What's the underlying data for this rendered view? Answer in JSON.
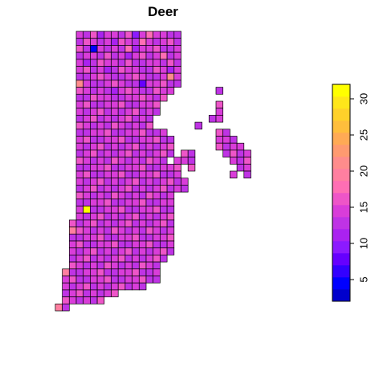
{
  "chart_data": {
    "type": "heatmap",
    "title": "Deer",
    "xlabel": "",
    "ylabel": "",
    "colorbar": {
      "range": [
        2,
        32
      ],
      "ticks": [
        5,
        10,
        15,
        20,
        25,
        30
      ],
      "colors": [
        "#0000CC",
        "#0000FF",
        "#3300FF",
        "#6600FF",
        "#8C1AFF",
        "#AA22F0",
        "#BF33E5",
        "#D93DD9",
        "#EE55C8",
        "#FF6EB4",
        "#FF7FA0",
        "#FF8C8C",
        "#FF9A70",
        "#FFAA55",
        "#FFBE3C",
        "#FFD12A",
        "#FFE61A",
        "#FFFF00"
      ]
    },
    "grid": {
      "rows": [
        {
          "r": 0,
          "c0": 0,
          "n": 15,
          "vals": [
            15,
            12,
            16,
            11,
            14,
            15,
            13,
            16,
            9,
            14,
            17,
            15,
            14,
            13,
            12
          ]
        },
        {
          "r": 1,
          "c0": 0,
          "n": 15,
          "vals": [
            13,
            16,
            14,
            12,
            15,
            11,
            16,
            14,
            13,
            17,
            15,
            12,
            14,
            16,
            13
          ]
        },
        {
          "r": 2,
          "c0": 0,
          "n": 15,
          "vals": [
            16,
            13,
            5,
            15,
            12,
            14,
            13,
            17,
            11,
            15,
            14,
            16,
            12,
            13,
            15
          ]
        },
        {
          "r": 3,
          "c0": 0,
          "n": 15,
          "vals": [
            12,
            14,
            15,
            13,
            16,
            12,
            15,
            11,
            14,
            16,
            13,
            15,
            17,
            12,
            14
          ]
        },
        {
          "r": 4,
          "c0": 0,
          "n": 15,
          "vals": [
            14,
            11,
            13,
            16,
            14,
            15,
            12,
            16,
            13,
            12,
            15,
            14,
            13,
            16,
            12
          ]
        },
        {
          "r": 5,
          "c0": 0,
          "n": 15,
          "vals": [
            15,
            16,
            12,
            14,
            11,
            13,
            16,
            14,
            15,
            13,
            12,
            16,
            14,
            11,
            15
          ]
        },
        {
          "r": 6,
          "c0": 0,
          "n": 15,
          "vals": [
            13,
            12,
            15,
            16,
            14,
            12,
            13,
            15,
            16,
            14,
            13,
            12,
            15,
            21,
            14
          ]
        },
        {
          "r": 7,
          "c0": 0,
          "n": 15,
          "vals": [
            21,
            14,
            13,
            12,
            15,
            16,
            14,
            12,
            13,
            7,
            15,
            14,
            16,
            12,
            13
          ]
        },
        {
          "r": 8,
          "c0": 0,
          "n": 14,
          "vals": [
            16,
            15,
            12,
            14,
            13,
            11,
            15,
            16,
            14,
            12,
            13,
            16,
            15,
            14
          ]
        },
        {
          "r": 9,
          "c0": 0,
          "n": 13,
          "vals": [
            12,
            13,
            16,
            15,
            14,
            13,
            12,
            14,
            15,
            16,
            14,
            13,
            16
          ]
        },
        {
          "r": 10,
          "c0": 0,
          "n": 12,
          "vals": [
            14,
            16,
            13,
            12,
            15,
            14,
            16,
            13,
            12,
            15,
            14,
            16
          ]
        },
        {
          "r": 11,
          "c0": 0,
          "n": 12,
          "vals": [
            15,
            12,
            14,
            16,
            13,
            15,
            12,
            14,
            16,
            13,
            15,
            12
          ]
        },
        {
          "r": 12,
          "c0": 0,
          "n": 11,
          "vals": [
            13,
            15,
            16,
            12,
            14,
            13,
            15,
            16,
            12,
            14,
            13
          ]
        },
        {
          "r": 13,
          "c0": 0,
          "n": 11,
          "vals": [
            16,
            14,
            12,
            15,
            13,
            16,
            14,
            12,
            15,
            13,
            16
          ]
        },
        {
          "r": 14,
          "c0": 0,
          "n": 13,
          "vals": [
            12,
            13,
            15,
            14,
            16,
            12,
            13,
            15,
            14,
            16,
            12,
            13,
            15
          ]
        },
        {
          "r": 15,
          "c0": 0,
          "n": 14,
          "vals": [
            14,
            16,
            13,
            12,
            15,
            14,
            16,
            13,
            12,
            15,
            14,
            16,
            13,
            12
          ]
        },
        {
          "r": 16,
          "c0": 0,
          "n": 14,
          "vals": [
            15,
            12,
            14,
            16,
            13,
            15,
            12,
            14,
            16,
            13,
            15,
            12,
            14,
            16
          ]
        },
        {
          "r": 17,
          "c0": 0,
          "n": 14,
          "vals": [
            13,
            15,
            16,
            12,
            14,
            13,
            15,
            16,
            12,
            14,
            13,
            15,
            16,
            12
          ]
        },
        {
          "r": 18,
          "c0": 0,
          "n": 13,
          "vals": [
            16,
            14,
            12,
            15,
            13,
            16,
            14,
            12,
            15,
            13,
            16,
            14,
            12
          ]
        },
        {
          "r": 19,
          "c0": 0,
          "n": 15,
          "vals": [
            12,
            13,
            15,
            14,
            16,
            12,
            13,
            15,
            14,
            16,
            12,
            13,
            15,
            14,
            16
          ]
        },
        {
          "r": 20,
          "c0": 0,
          "n": 15,
          "vals": [
            14,
            16,
            13,
            12,
            15,
            14,
            16,
            13,
            12,
            15,
            14,
            16,
            13,
            12,
            15
          ]
        },
        {
          "r": 21,
          "c0": 0,
          "n": 16,
          "vals": [
            15,
            12,
            14,
            16,
            13,
            15,
            12,
            14,
            16,
            13,
            15,
            12,
            14,
            16,
            13,
            15
          ]
        },
        {
          "r": 22,
          "c0": 0,
          "n": 16,
          "vals": [
            13,
            15,
            16,
            12,
            14,
            13,
            15,
            16,
            12,
            14,
            13,
            15,
            16,
            12,
            14,
            13
          ]
        },
        {
          "r": 23,
          "c0": 0,
          "n": 14,
          "vals": [
            16,
            14,
            12,
            15,
            13,
            16,
            14,
            12,
            15,
            13,
            16,
            14,
            12,
            15
          ]
        },
        {
          "r": 24,
          "c0": 0,
          "n": 14,
          "vals": [
            12,
            13,
            15,
            14,
            16,
            12,
            13,
            15,
            14,
            16,
            12,
            13,
            15,
            14
          ]
        },
        {
          "r": 25,
          "c0": 0,
          "n": 14,
          "vals": [
            14,
            32,
            13,
            12,
            15,
            14,
            16,
            13,
            12,
            15,
            14,
            16,
            13,
            12
          ]
        },
        {
          "r": 26,
          "c0": 0,
          "n": 14,
          "vals": [
            15,
            12,
            14,
            16,
            13,
            15,
            12,
            14,
            16,
            13,
            15,
            12,
            14,
            16
          ]
        },
        {
          "r": 27,
          "c0": -1,
          "n": 15,
          "vals": [
            16,
            13,
            15,
            16,
            12,
            14,
            13,
            15,
            16,
            12,
            14,
            13,
            15,
            16,
            12
          ]
        },
        {
          "r": 28,
          "c0": -1,
          "n": 15,
          "vals": [
            20,
            16,
            14,
            12,
            15,
            13,
            16,
            14,
            12,
            15,
            13,
            16,
            14,
            12,
            15
          ]
        },
        {
          "r": 29,
          "c0": -1,
          "n": 15,
          "vals": [
            12,
            13,
            15,
            14,
            16,
            12,
            13,
            15,
            14,
            16,
            12,
            13,
            15,
            14,
            16
          ]
        },
        {
          "r": 30,
          "c0": -1,
          "n": 15,
          "vals": [
            14,
            16,
            13,
            12,
            15,
            14,
            16,
            13,
            12,
            15,
            14,
            16,
            13,
            12,
            15
          ]
        },
        {
          "r": 31,
          "c0": -1,
          "n": 15,
          "vals": [
            15,
            12,
            14,
            16,
            13,
            15,
            12,
            14,
            16,
            13,
            15,
            12,
            14,
            16,
            13
          ]
        },
        {
          "r": 32,
          "c0": -1,
          "n": 14,
          "vals": [
            13,
            15,
            16,
            12,
            14,
            13,
            15,
            16,
            12,
            14,
            13,
            15,
            16,
            12
          ]
        },
        {
          "r": 33,
          "c0": -1,
          "n": 13,
          "vals": [
            16,
            14,
            12,
            15,
            13,
            16,
            14,
            12,
            15,
            13,
            16,
            14,
            12
          ]
        },
        {
          "r": 34,
          "c0": -2,
          "n": 14,
          "vals": [
            20,
            12,
            13,
            15,
            14,
            16,
            12,
            13,
            15,
            14,
            16,
            12,
            13,
            15
          ]
        },
        {
          "r": 35,
          "c0": -2,
          "n": 14,
          "vals": [
            14,
            16,
            13,
            12,
            15,
            14,
            16,
            13,
            12,
            15,
            14,
            16,
            13,
            12
          ]
        },
        {
          "r": 36,
          "c0": -2,
          "n": 12,
          "vals": [
            15,
            12,
            14,
            16,
            13,
            15,
            12,
            14,
            16,
            13,
            15,
            12
          ]
        },
        {
          "r": 37,
          "c0": -2,
          "n": 8,
          "vals": [
            13,
            15,
            16,
            12,
            14,
            13,
            15,
            16
          ]
        },
        {
          "r": 38,
          "c0": -2,
          "n": 6,
          "vals": [
            16,
            14,
            12,
            15,
            13,
            16
          ]
        },
        {
          "r": 39,
          "c0": -3,
          "n": 2,
          "vals": [
            20,
            12
          ]
        }
      ],
      "islands": [
        {
          "r": 8,
          "c": 20,
          "v": 13
        },
        {
          "r": 10,
          "c": 20,
          "v": 16
        },
        {
          "r": 11,
          "c": 20,
          "v": 14
        },
        {
          "r": 12,
          "c": 19,
          "v": 12
        },
        {
          "r": 12,
          "c": 20,
          "v": 15
        },
        {
          "r": 13,
          "c": 17,
          "v": 13
        },
        {
          "r": 14,
          "c": 20,
          "v": 16
        },
        {
          "r": 14,
          "c": 21,
          "v": 12
        },
        {
          "r": 15,
          "c": 20,
          "v": 14
        },
        {
          "r": 15,
          "c": 21,
          "v": 15
        },
        {
          "r": 15,
          "c": 22,
          "v": 13
        },
        {
          "r": 16,
          "c": 20,
          "v": 16
        },
        {
          "r": 16,
          "c": 21,
          "v": 12
        },
        {
          "r": 16,
          "c": 22,
          "v": 14
        },
        {
          "r": 16,
          "c": 23,
          "v": 15
        },
        {
          "r": 17,
          "c": 21,
          "v": 13
        },
        {
          "r": 17,
          "c": 22,
          "v": 16
        },
        {
          "r": 17,
          "c": 23,
          "v": 12
        },
        {
          "r": 17,
          "c": 24,
          "v": 14
        },
        {
          "r": 18,
          "c": 22,
          "v": 15
        },
        {
          "r": 18,
          "c": 23,
          "v": 13
        },
        {
          "r": 18,
          "c": 24,
          "v": 16
        },
        {
          "r": 19,
          "c": 23,
          "v": 12
        },
        {
          "r": 19,
          "c": 24,
          "v": 14
        },
        {
          "r": 20,
          "c": 22,
          "v": 15
        },
        {
          "r": 20,
          "c": 24,
          "v": 13
        },
        {
          "r": 17,
          "c": 15,
          "v": 16
        },
        {
          "r": 17,
          "c": 16,
          "v": 12
        },
        {
          "r": 18,
          "c": 14,
          "v": 14
        },
        {
          "r": 18,
          "c": 15,
          "v": 15
        },
        {
          "r": 18,
          "c": 16,
          "v": 13
        },
        {
          "r": 19,
          "c": 16,
          "v": 16
        }
      ]
    }
  }
}
